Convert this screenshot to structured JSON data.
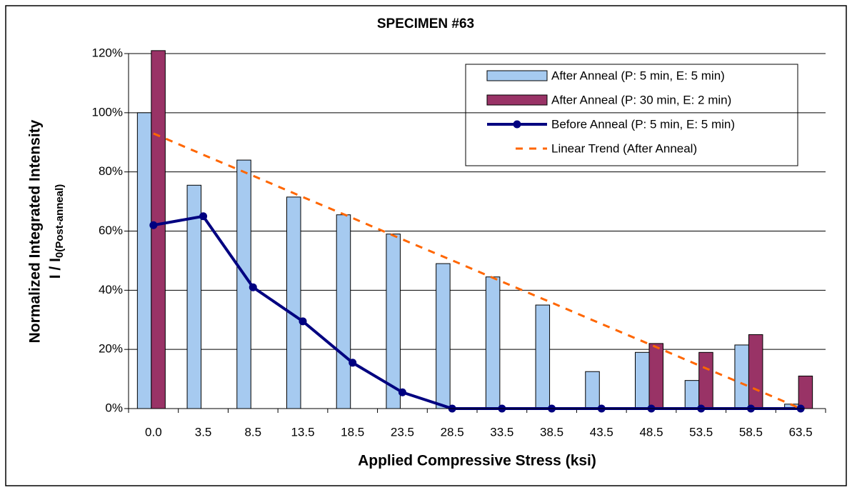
{
  "chart_data": {
    "type": "bar",
    "title": "SPECIMEN #63",
    "x_label": "Applied Compressive Stress (ksi)",
    "y_label": "Normalized Integrated Intensity",
    "y_label2": "I / I",
    "y_label2_sub": "0(Post-anneal)",
    "categories": [
      "0.0",
      "3.5",
      "8.5",
      "13.5",
      "18.5",
      "23.5",
      "28.5",
      "33.5",
      "38.5",
      "43.5",
      "48.5",
      "53.5",
      "58.5",
      "63.5"
    ],
    "ylim": [
      0,
      120
    ],
    "yticks": [
      {
        "value": 0,
        "label": "0%"
      },
      {
        "value": 20,
        "label": "20%"
      },
      {
        "value": 40,
        "label": "40%"
      },
      {
        "value": 60,
        "label": "60%"
      },
      {
        "value": 80,
        "label": "80%"
      },
      {
        "value": 100,
        "label": "100%"
      },
      {
        "value": 120,
        "label": "120%"
      }
    ],
    "grid": true,
    "series": [
      {
        "name": "After Anneal (P: 5 min, E: 5 min)",
        "type": "bar",
        "color": "#a6caf0",
        "values": [
          100,
          75.5,
          84,
          71.5,
          65.5,
          59,
          49,
          44.5,
          35,
          12.5,
          19,
          9.5,
          21.5,
          1.5
        ]
      },
      {
        "name": "After Anneal (P: 30 min, E: 2 min)",
        "type": "bar",
        "color": "#993366",
        "values": [
          121,
          null,
          null,
          null,
          null,
          null,
          null,
          null,
          null,
          null,
          22,
          19,
          25,
          11
        ]
      },
      {
        "name": "Before Anneal (P: 5 min, E: 5 min)",
        "type": "line",
        "color": "#000080",
        "values": [
          62,
          65,
          41,
          29.5,
          15.5,
          5.5,
          0,
          0,
          0,
          0,
          0,
          0,
          0,
          0
        ]
      },
      {
        "name": "Linear Trend (After Anneal)",
        "type": "dashed",
        "color": "#ff6600",
        "values": [
          93,
          85.8,
          78.7,
          71.5,
          64.4,
          57.2,
          50.1,
          42.9,
          35.8,
          28.6,
          21.5,
          14.3,
          7.2,
          0
        ]
      }
    ]
  }
}
